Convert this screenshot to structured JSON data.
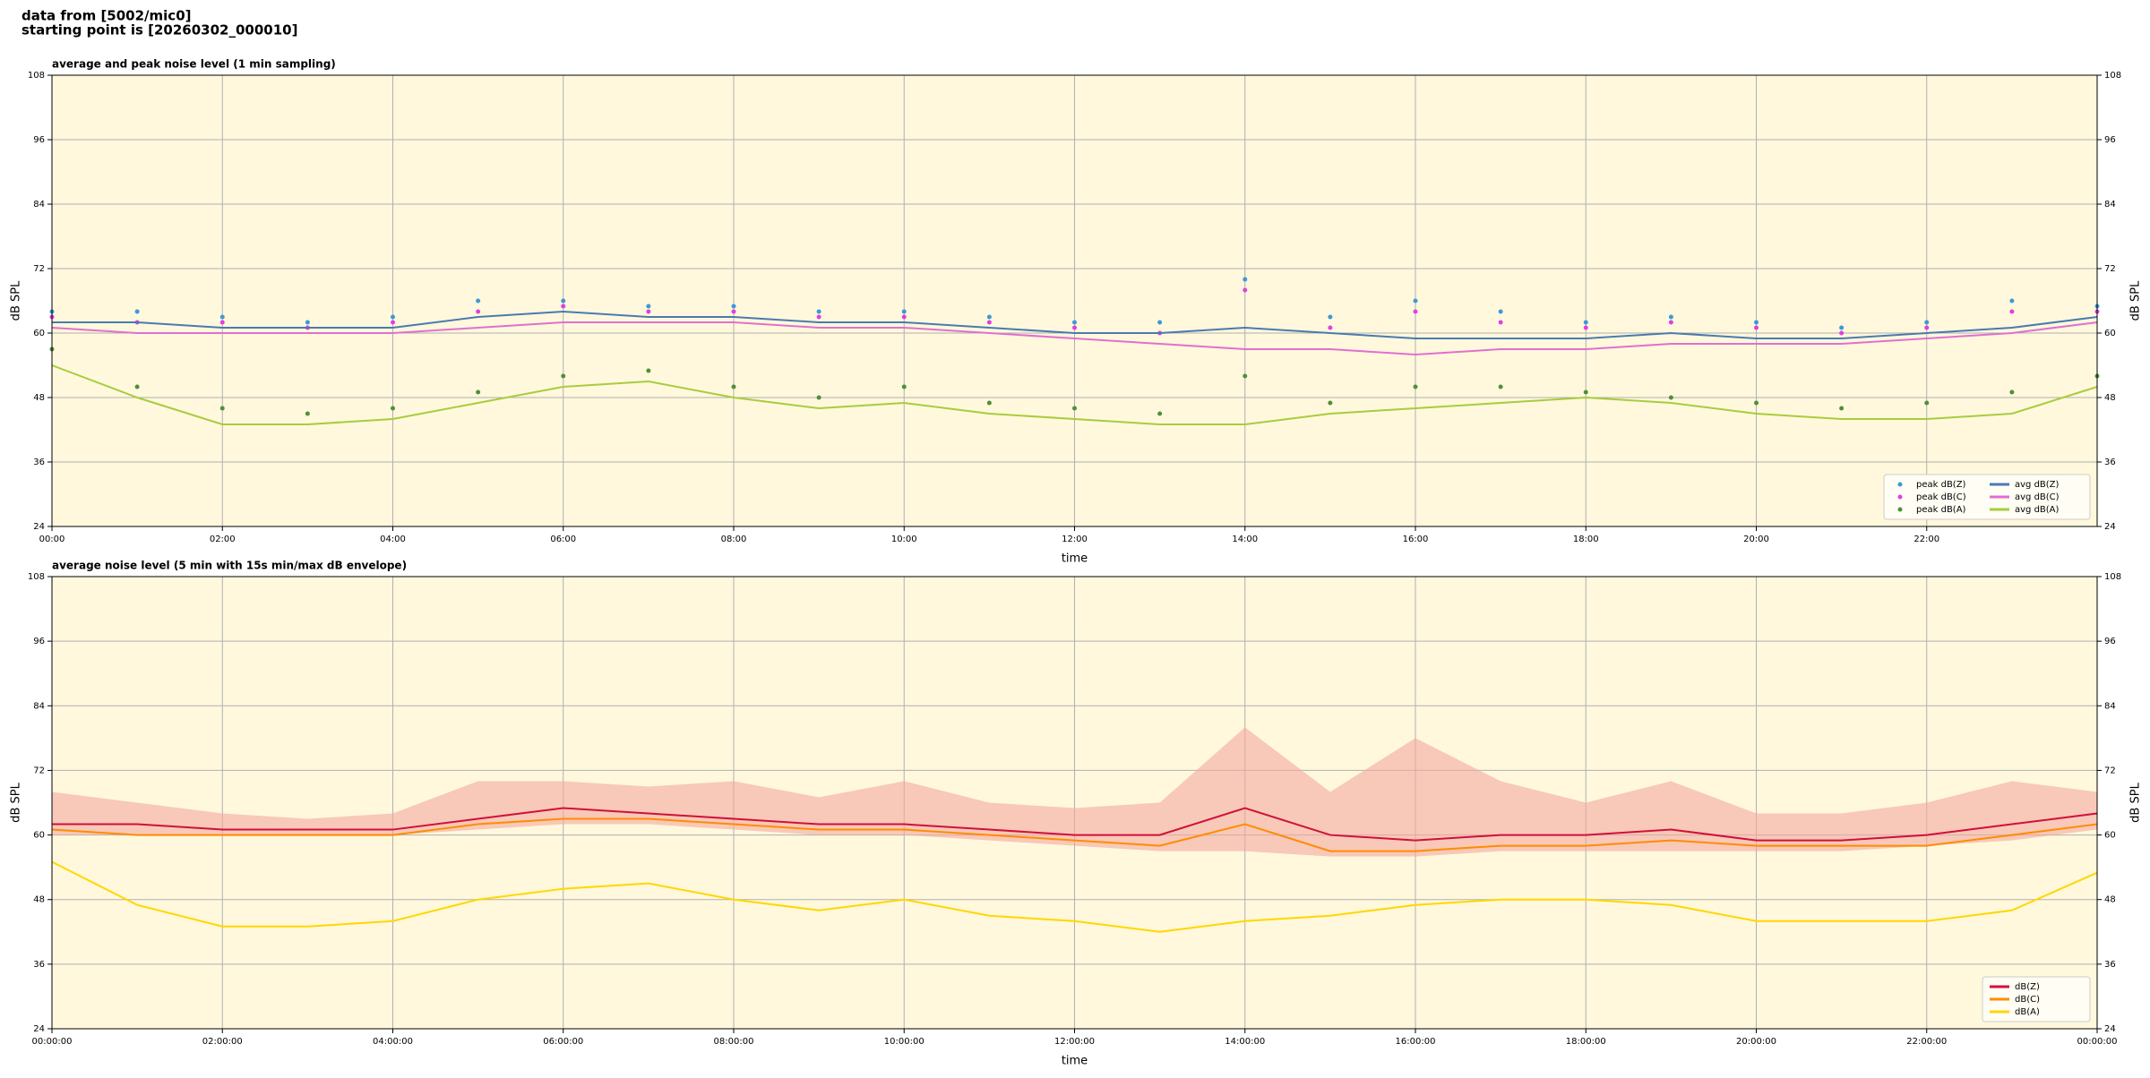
{
  "header": {
    "line1": "data from [5002/mic0]",
    "line2": "starting point is [20260302_000010]"
  },
  "chart_data": [
    {
      "type": "line",
      "title": "average and peak noise level (1 min sampling)",
      "xlabel": "time",
      "ylabel": "dB SPL",
      "x": [
        0,
        1,
        2,
        3,
        4,
        5,
        6,
        7,
        8,
        9,
        10,
        11,
        12,
        13,
        14,
        15,
        16,
        17,
        18,
        19,
        20,
        21,
        22,
        23,
        24
      ],
      "xlim": [
        0,
        24
      ],
      "ylim": [
        24,
        108
      ],
      "yticks": [
        24,
        36,
        48,
        60,
        72,
        84,
        96,
        108
      ],
      "xticks": [
        {
          "value": 0,
          "label": "00:00"
        },
        {
          "value": 2,
          "label": "02:00"
        },
        {
          "value": 4,
          "label": "04:00"
        },
        {
          "value": 6,
          "label": "06:00"
        },
        {
          "value": 8,
          "label": "08:00"
        },
        {
          "value": 10,
          "label": "10:00"
        },
        {
          "value": 12,
          "label": "12:00"
        },
        {
          "value": 14,
          "label": "14:00"
        },
        {
          "value": 16,
          "label": "16:00"
        },
        {
          "value": 18,
          "label": "18:00"
        },
        {
          "value": 20,
          "label": "20:00"
        },
        {
          "value": 22,
          "label": "22:00"
        }
      ],
      "grid": true,
      "legend": "lower right",
      "legend_columns": 2,
      "right_axis": true,
      "series": [
        {
          "name": "peak dB(Z)",
          "mark": "scatter",
          "color": "#3a9ad9",
          "values": [
            64,
            64,
            63,
            62,
            63,
            66,
            66,
            65,
            65,
            64,
            64,
            63,
            62,
            62,
            70,
            63,
            66,
            64,
            62,
            63,
            62,
            61,
            62,
            66,
            65
          ]
        },
        {
          "name": "peak dB(C)",
          "mark": "scatter",
          "color": "#e040e0",
          "values": [
            63,
            62,
            62,
            61,
            62,
            64,
            65,
            64,
            64,
            63,
            63,
            62,
            61,
            60,
            68,
            61,
            64,
            62,
            61,
            62,
            61,
            60,
            61,
            64,
            64
          ]
        },
        {
          "name": "peak dB(A)",
          "mark": "scatter",
          "color": "#4f8f3a",
          "values": [
            57,
            50,
            46,
            45,
            46,
            49,
            52,
            53,
            50,
            48,
            50,
            47,
            46,
            45,
            52,
            47,
            50,
            50,
            49,
            48,
            47,
            46,
            47,
            49,
            52
          ]
        },
        {
          "name": "avg dB(Z)",
          "mark": "line",
          "color": "#4a7ab0",
          "values": [
            62,
            62,
            61,
            61,
            61,
            63,
            64,
            63,
            63,
            62,
            62,
            61,
            60,
            60,
            61,
            60,
            59,
            59,
            59,
            60,
            59,
            59,
            60,
            61,
            63
          ]
        },
        {
          "name": "avg dB(C)",
          "mark": "line",
          "color": "#e070d0",
          "values": [
            61,
            60,
            60,
            60,
            60,
            61,
            62,
            62,
            62,
            61,
            61,
            60,
            59,
            58,
            57,
            57,
            56,
            57,
            57,
            58,
            58,
            58,
            59,
            60,
            62
          ]
        },
        {
          "name": "avg dB(A)",
          "mark": "line",
          "color": "#a8cc40",
          "values": [
            54,
            48,
            43,
            43,
            44,
            47,
            50,
            51,
            48,
            46,
            47,
            45,
            44,
            43,
            43,
            45,
            46,
            47,
            48,
            47,
            45,
            44,
            44,
            45,
            50
          ]
        }
      ]
    },
    {
      "type": "line",
      "title": "average noise level (5 min with 15s min/max dB envelope)",
      "xlabel": "time",
      "ylabel": "dB SPL",
      "x": [
        0,
        1,
        2,
        3,
        4,
        5,
        6,
        7,
        8,
        9,
        10,
        11,
        12,
        13,
        14,
        15,
        16,
        17,
        18,
        19,
        20,
        21,
        22,
        23,
        24
      ],
      "xlim": [
        0,
        24
      ],
      "ylim": [
        24,
        108
      ],
      "yticks": [
        24,
        36,
        48,
        60,
        72,
        84,
        96,
        108
      ],
      "xticks": [
        {
          "value": 0,
          "label": "00:00:00"
        },
        {
          "value": 2,
          "label": "02:00:00"
        },
        {
          "value": 4,
          "label": "04:00:00"
        },
        {
          "value": 6,
          "label": "06:00:00"
        },
        {
          "value": 8,
          "label": "08:00:00"
        },
        {
          "value": 10,
          "label": "10:00:00"
        },
        {
          "value": 12,
          "label": "12:00:00"
        },
        {
          "value": 14,
          "label": "14:00:00"
        },
        {
          "value": 16,
          "label": "16:00:00"
        },
        {
          "value": 18,
          "label": "18:00:00"
        },
        {
          "value": 20,
          "label": "20:00:00"
        },
        {
          "value": 22,
          "label": "22:00:00"
        },
        {
          "value": 24,
          "label": "00:00:00"
        }
      ],
      "grid": true,
      "legend": "lower right",
      "legend_columns": 1,
      "right_axis": true,
      "series": [
        {
          "name": "dB(Z)",
          "mark": "line",
          "color": "#d0103a",
          "values": [
            62,
            62,
            61,
            61,
            61,
            63,
            65,
            64,
            63,
            62,
            62,
            61,
            60,
            60,
            65,
            60,
            59,
            60,
            60,
            61,
            59,
            59,
            60,
            62,
            64
          ],
          "envelope_color": "#f4a8a0",
          "low": [
            60,
            60,
            60,
            60,
            60,
            61,
            62,
            62,
            61,
            60,
            60,
            59,
            58,
            57,
            57,
            56,
            56,
            57,
            57,
            57,
            57,
            57,
            58,
            59,
            61
          ],
          "high": [
            68,
            66,
            64,
            63,
            64,
            70,
            70,
            69,
            70,
            67,
            70,
            66,
            65,
            66,
            80,
            68,
            78,
            70,
            66,
            70,
            64,
            64,
            66,
            70,
            68
          ]
        },
        {
          "name": "dB(C)",
          "mark": "line",
          "color": "#ff8c00",
          "values": [
            61,
            60,
            60,
            60,
            60,
            62,
            63,
            63,
            62,
            61,
            61,
            60,
            59,
            58,
            62,
            57,
            57,
            58,
            58,
            59,
            58,
            58,
            58,
            60,
            62
          ]
        },
        {
          "name": "dB(A)",
          "mark": "line",
          "color": "#ffd700",
          "values": [
            55,
            47,
            43,
            43,
            44,
            48,
            50,
            51,
            48,
            46,
            48,
            45,
            44,
            42,
            44,
            45,
            47,
            48,
            48,
            47,
            44,
            44,
            44,
            46,
            53
          ]
        }
      ]
    }
  ]
}
